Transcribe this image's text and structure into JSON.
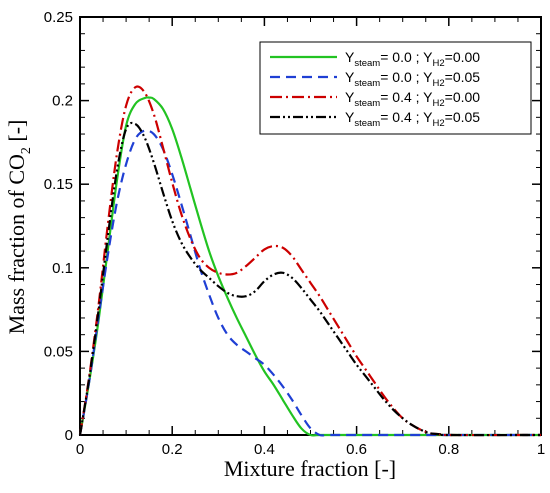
{
  "chart_data": {
    "type": "line",
    "xlabel": "Mixture fraction [-]",
    "ylabel_main": "Mass fraction of CO",
    "ylabel_sub": "2",
    "ylabel_unit": " [-]",
    "xlim": [
      0,
      1
    ],
    "ylim": [
      0,
      0.25
    ],
    "x_ticks": [
      0,
      0.2,
      0.4,
      0.6,
      0.8,
      1
    ],
    "x_tick_labels": [
      "0",
      "0.2",
      "0.4",
      "0.6",
      "0.8",
      "1"
    ],
    "y_ticks": [
      0,
      0.05,
      0.1,
      0.15,
      0.2,
      0.25
    ],
    "y_tick_labels": [
      "0",
      "0.05",
      "0.1",
      "0.15",
      "0.2",
      "0.25"
    ],
    "grid": false,
    "legend_position": "top-right",
    "series": [
      {
        "legend": {
          "y_label": "Y",
          "y_sub": "steam",
          "y_val": "=  0.0 ; ",
          "h_label": "Y",
          "h_sub": "H2",
          "h_val": "=0.00"
        },
        "color": "#22c322",
        "dash": "solid",
        "x": [
          0,
          0.02,
          0.04,
          0.06,
          0.08,
          0.1,
          0.12,
          0.14,
          0.15,
          0.16,
          0.18,
          0.2,
          0.22,
          0.24,
          0.26,
          0.28,
          0.3,
          0.32,
          0.34,
          0.36,
          0.38,
          0.4,
          0.42,
          0.44,
          0.46,
          0.48,
          0.5,
          0.52,
          0.6,
          0.8,
          1.0
        ],
        "y": [
          0,
          0.032,
          0.068,
          0.11,
          0.152,
          0.185,
          0.198,
          0.2015,
          0.2018,
          0.201,
          0.195,
          0.183,
          0.166,
          0.147,
          0.128,
          0.11,
          0.095,
          0.082,
          0.07,
          0.059,
          0.048,
          0.038,
          0.03,
          0.021,
          0.012,
          0.004,
          0,
          0,
          0,
          0,
          0
        ]
      },
      {
        "legend": {
          "y_label": "Y",
          "y_sub": "steam",
          "y_val": "=  0.0 ; ",
          "h_label": "Y",
          "h_sub": "H2",
          "h_val": "=0.05"
        },
        "color": "#1f3fd4",
        "dash": "10,6",
        "x": [
          0,
          0.02,
          0.04,
          0.06,
          0.08,
          0.1,
          0.12,
          0.14,
          0.16,
          0.18,
          0.2,
          0.22,
          0.24,
          0.26,
          0.28,
          0.3,
          0.32,
          0.34,
          0.36,
          0.38,
          0.4,
          0.42,
          0.44,
          0.46,
          0.48,
          0.5,
          0.52,
          0.54,
          0.6,
          0.8,
          1.0
        ],
        "y": [
          0,
          0.032,
          0.07,
          0.107,
          0.139,
          0.162,
          0.177,
          0.182,
          0.18,
          0.171,
          0.156,
          0.138,
          0.119,
          0.1,
          0.084,
          0.07,
          0.06,
          0.054,
          0.05,
          0.046,
          0.042,
          0.036,
          0.029,
          0.021,
          0.012,
          0.004,
          0,
          0,
          0,
          0,
          0
        ]
      },
      {
        "legend": {
          "y_label": "Y",
          "y_sub": "steam",
          "y_val": "=  0.4 ; ",
          "h_label": "Y",
          "h_sub": "H2",
          "h_val": "=0.00"
        },
        "color": "#cc0000",
        "dash": "12,4,2,4",
        "x": [
          0,
          0.02,
          0.04,
          0.06,
          0.08,
          0.1,
          0.12,
          0.14,
          0.16,
          0.18,
          0.2,
          0.22,
          0.24,
          0.26,
          0.28,
          0.3,
          0.32,
          0.34,
          0.36,
          0.38,
          0.4,
          0.42,
          0.44,
          0.46,
          0.48,
          0.5,
          0.52,
          0.54,
          0.56,
          0.58,
          0.6,
          0.62,
          0.64,
          0.66,
          0.68,
          0.7,
          0.72,
          0.74,
          0.76,
          0.78,
          0.8,
          1.0
        ],
        "y": [
          0,
          0.035,
          0.077,
          0.125,
          0.168,
          0.197,
          0.208,
          0.205,
          0.192,
          0.172,
          0.151,
          0.132,
          0.117,
          0.106,
          0.1,
          0.097,
          0.096,
          0.097,
          0.101,
          0.106,
          0.111,
          0.113,
          0.112,
          0.107,
          0.099,
          0.091,
          0.083,
          0.074,
          0.065,
          0.056,
          0.047,
          0.039,
          0.031,
          0.023,
          0.016,
          0.01,
          0.006,
          0.003,
          0.001,
          0.0005,
          0,
          0
        ]
      },
      {
        "legend": {
          "y_label": "Y",
          "y_sub": "steam",
          "y_val": "=  0.4 ; ",
          "h_label": "Y",
          "h_sub": "H2",
          "h_val": "=0.05"
        },
        "color": "#000000",
        "dash": "10,3,2,3,2,3",
        "x": [
          0,
          0.02,
          0.04,
          0.06,
          0.08,
          0.1,
          0.12,
          0.14,
          0.16,
          0.18,
          0.2,
          0.22,
          0.24,
          0.26,
          0.28,
          0.3,
          0.32,
          0.34,
          0.36,
          0.38,
          0.4,
          0.42,
          0.44,
          0.46,
          0.48,
          0.5,
          0.52,
          0.54,
          0.56,
          0.58,
          0.6,
          0.62,
          0.64,
          0.66,
          0.68,
          0.7,
          0.72,
          0.74,
          0.76,
          0.78,
          0.8,
          1.0
        ],
        "y": [
          0,
          0.034,
          0.074,
          0.118,
          0.158,
          0.183,
          0.186,
          0.178,
          0.163,
          0.145,
          0.128,
          0.115,
          0.106,
          0.099,
          0.094,
          0.089,
          0.085,
          0.083,
          0.083,
          0.086,
          0.092,
          0.096,
          0.097,
          0.094,
          0.088,
          0.081,
          0.074,
          0.066,
          0.058,
          0.05,
          0.042,
          0.035,
          0.028,
          0.021,
          0.015,
          0.01,
          0.006,
          0.003,
          0.001,
          0.0005,
          0,
          0
        ]
      }
    ]
  }
}
